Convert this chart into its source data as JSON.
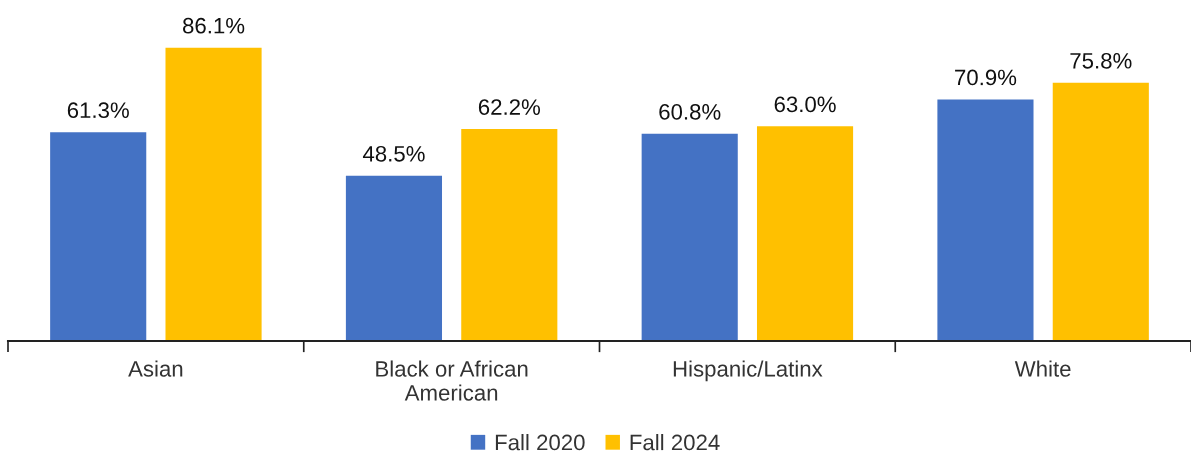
{
  "chart_data": {
    "type": "bar",
    "categories": [
      "Asian",
      "Black or African American",
      "Hispanic/Latinx",
      "White"
    ],
    "series": [
      {
        "name": "Fall 2020",
        "color": "#4472c4",
        "values": [
          61.3,
          48.5,
          60.8,
          70.9
        ],
        "value_labels": [
          "61.3%",
          "48.5%",
          "60.8%",
          "70.9%"
        ]
      },
      {
        "name": "Fall 2024",
        "color": "#ffc000",
        "values": [
          86.1,
          62.2,
          63.0,
          75.8
        ],
        "value_labels": [
          "86.1%",
          "62.2%",
          "63.0%",
          "75.8%"
        ]
      }
    ],
    "legend": "bottom"
  }
}
